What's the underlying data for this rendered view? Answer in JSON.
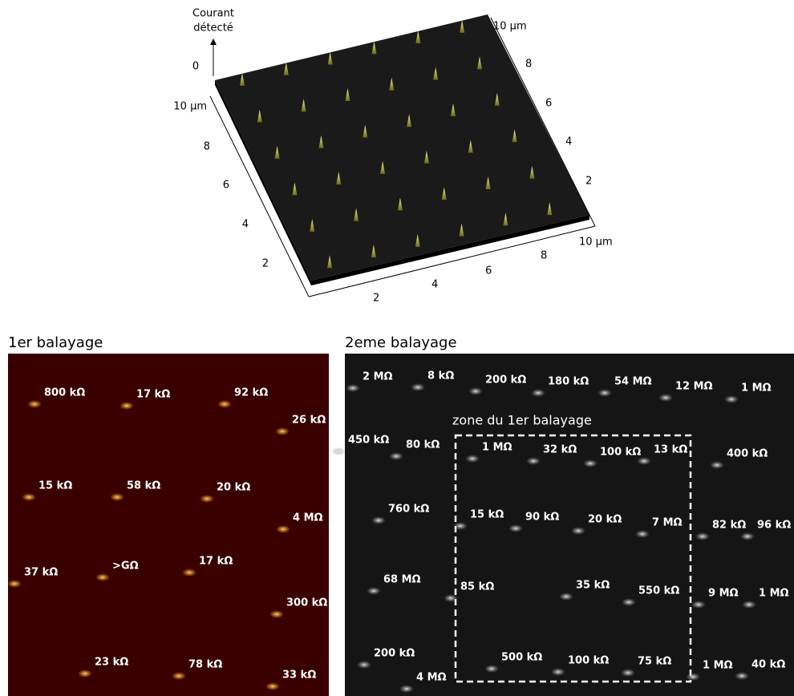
{
  "surface_plot": {
    "z_label": [
      "Courant",
      "détecté"
    ],
    "z_tick": "0",
    "left_axis_ticks": [
      "10 µm",
      "8",
      "6",
      "4",
      "2"
    ],
    "right_axis_ticks": [
      "10 µm",
      "8",
      "6",
      "4",
      "2"
    ],
    "front_axis_ticks": [
      "2",
      "4",
      "6",
      "8",
      "10 µm"
    ]
  },
  "scan1": {
    "title": "1er balayage",
    "labels": [
      "800 kΩ",
      "17 kΩ",
      "92 kΩ",
      "26 kΩ",
      "15 kΩ",
      "58 kΩ",
      "20 kΩ",
      "4 MΩ",
      "37 kΩ",
      ">GΩ",
      "17 kΩ",
      "300 kΩ",
      "23 kΩ",
      "78 kΩ",
      "33 kΩ"
    ]
  },
  "scan2": {
    "title": "2eme balayage",
    "zone_label": "zone du 1er balayage",
    "labels": [
      "2 MΩ",
      "8 kΩ",
      "200 kΩ",
      "180 kΩ",
      "54 MΩ",
      "12 MΩ",
      "1 MΩ",
      "450 kΩ",
      "80 kΩ",
      "1 MΩ",
      "32 kΩ",
      "100 kΩ",
      "13 kΩ",
      "400 kΩ",
      "760 kΩ",
      "15 kΩ",
      "90 kΩ",
      "20 kΩ",
      "7 MΩ",
      "82 kΩ",
      "96 kΩ",
      "68 MΩ",
      "85 kΩ",
      "35 kΩ",
      "550 kΩ",
      "9 MΩ",
      "1 MΩ",
      "200 kΩ",
      "4 MΩ",
      "500 kΩ",
      "100 kΩ",
      "75 kΩ",
      "1 MΩ",
      "40 kΩ"
    ]
  }
}
